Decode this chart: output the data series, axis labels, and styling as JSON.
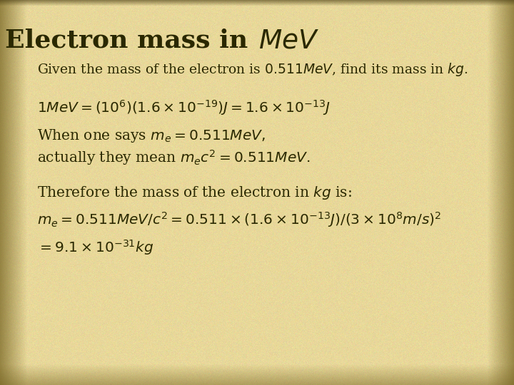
{
  "bg_color": "#e8d89a",
  "text_color": "#2a2800",
  "border_left_color": "#8a7030",
  "border_right_color": "#8a7030",
  "title_fontsize": 26,
  "body_fontsize": 14.5,
  "subtitle_fontsize": 13.5
}
